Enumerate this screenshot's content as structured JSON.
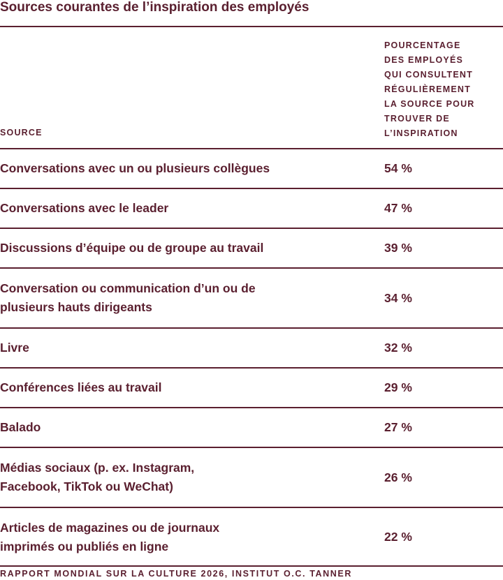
{
  "title": "Sources courantes de l’inspiration des employés",
  "table": {
    "header_source": "SOURCE",
    "header_percentage_lines": [
      "POURCENTAGE",
      "DES EMPLOYÉS",
      "QUI CONSULTENT",
      "RÉGULIÈREMENT",
      "LA SOURCE POUR",
      "TROUVER DE",
      "L’INSPIRATION"
    ],
    "rows": [
      {
        "source_lines": [
          "Conversations avec un ou plusieurs collègues"
        ],
        "percentage": "54 %"
      },
      {
        "source_lines": [
          "Conversations avec le leader"
        ],
        "percentage": "47 %"
      },
      {
        "source_lines": [
          "Discussions d’équipe ou de groupe au travail"
        ],
        "percentage": "39 %"
      },
      {
        "source_lines": [
          "Conversation ou communication d’un ou de",
          "plusieurs hauts dirigeants"
        ],
        "percentage": "34 %"
      },
      {
        "source_lines": [
          "Livre"
        ],
        "percentage": "32 %"
      },
      {
        "source_lines": [
          "Conférences liées au travail"
        ],
        "percentage": "29 %"
      },
      {
        "source_lines": [
          "Balado"
        ],
        "percentage": "27 %"
      },
      {
        "source_lines": [
          "Médias sociaux (p. ex. Instagram,",
          "Facebook, TikTok ou WeChat)"
        ],
        "percentage": "26 %"
      },
      {
        "source_lines": [
          "Articles de magazines ou de journaux",
          "imprimés ou publiés en ligne"
        ],
        "percentage": "22 %"
      }
    ]
  },
  "footer": "RAPPORT MONDIAL SUR LA CULTURE 2026, INSTITUT O.C. TANNER",
  "colors": {
    "text": "#5a1f2f",
    "rule": "#5a1f2f",
    "background": "#ffffff"
  }
}
